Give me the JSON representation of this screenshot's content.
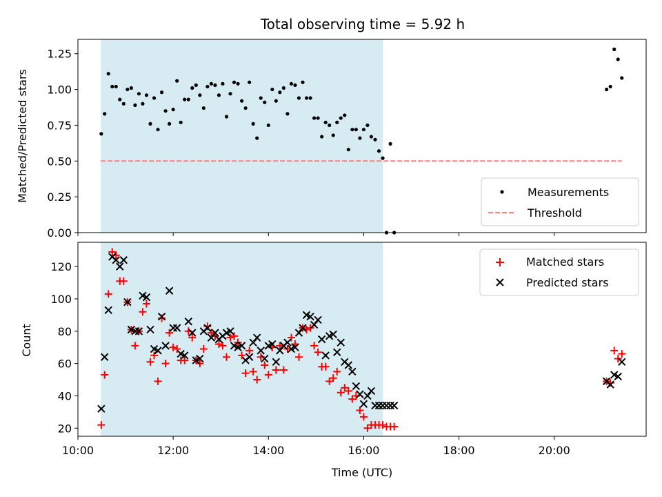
{
  "chart_data": [
    {
      "type": "scatter",
      "title": "Total observing time = 5.92 h",
      "ylabel": "Matched/Predicted stars",
      "xlabel": "",
      "ylim": [
        0,
        1.35
      ],
      "yticks": [
        0.0,
        0.25,
        0.5,
        0.75,
        1.0,
        1.25
      ],
      "ytick_labels": [
        "0.00",
        "0.25",
        "0.50",
        "0.75",
        "1.00",
        "1.25"
      ],
      "x_unit": "hours (UTC)",
      "xlim": [
        10.0,
        21.93
      ],
      "shaded_span": [
        10.48,
        16.4
      ],
      "grid": false,
      "legend_placement": "lower right",
      "series": [
        {
          "name": "Measurements",
          "marker": "dot",
          "color": "#000000",
          "x": [
            10.49,
            10.56,
            10.64,
            10.72,
            10.8,
            10.88,
            10.96,
            11.04,
            11.12,
            11.2,
            11.28,
            11.36,
            11.44,
            11.52,
            11.6,
            11.68,
            11.76,
            11.84,
            11.92,
            12.0,
            12.08,
            12.16,
            12.24,
            12.32,
            12.4,
            12.48,
            12.56,
            12.64,
            12.72,
            12.8,
            12.88,
            12.96,
            13.04,
            13.12,
            13.2,
            13.28,
            13.36,
            13.44,
            13.52,
            13.6,
            13.68,
            13.76,
            13.84,
            13.92,
            14.0,
            14.08,
            14.16,
            14.24,
            14.32,
            14.4,
            14.48,
            14.56,
            14.64,
            14.72,
            14.8,
            14.88,
            14.96,
            15.04,
            15.12,
            15.2,
            15.28,
            15.36,
            15.44,
            15.52,
            15.6,
            15.68,
            15.76,
            15.84,
            15.92,
            16.0,
            16.08,
            16.16,
            16.24,
            16.32,
            16.4,
            16.48,
            16.56,
            16.64,
            21.1,
            21.18,
            21.26,
            21.34,
            21.42
          ],
          "y": [
            0.69,
            0.83,
            1.11,
            1.02,
            1.02,
            0.93,
            0.9,
            1.0,
            1.01,
            0.89,
            0.97,
            0.9,
            0.96,
            0.76,
            0.94,
            0.72,
            0.98,
            0.85,
            0.76,
            0.86,
            1.06,
            0.77,
            0.93,
            0.93,
            1.01,
            1.03,
            0.96,
            0.87,
            1.02,
            1.04,
            1.03,
            0.96,
            1.04,
            0.81,
            0.97,
            1.05,
            1.04,
            0.92,
            0.87,
            1.05,
            0.76,
            0.66,
            0.94,
            0.91,
            0.75,
            1.0,
            0.92,
            0.98,
            1.01,
            0.83,
            1.04,
            1.03,
            0.94,
            1.05,
            0.94,
            0.94,
            0.8,
            0.8,
            0.67,
            0.77,
            0.75,
            0.68,
            0.77,
            0.8,
            0.82,
            0.58,
            0.72,
            0.72,
            0.66,
            0.72,
            0.75,
            0.67,
            0.65,
            0.57,
            0.52,
            0.0,
            0.62,
            0.0,
            1.0,
            1.02,
            1.28,
            1.21,
            1.08
          ]
        },
        {
          "name": "Threshold",
          "marker": "dashed-line",
          "color": "#ff7f7f",
          "x": [
            10.48,
            21.42
          ],
          "y": [
            0.5,
            0.5
          ]
        }
      ]
    },
    {
      "type": "scatter",
      "title": "",
      "xlabel": "Time (UTC)",
      "ylabel": "Count",
      "ylim": [
        15,
        135
      ],
      "yticks": [
        20,
        40,
        60,
        80,
        100,
        120
      ],
      "ytick_labels": [
        "20",
        "40",
        "60",
        "80",
        "100",
        "120"
      ],
      "xlim": [
        10.0,
        21.93
      ],
      "xticks": [
        10,
        12,
        14,
        16,
        18,
        20
      ],
      "xtick_labels": [
        "10:00",
        "12:00",
        "14:00",
        "16:00",
        "18:00",
        "20:00"
      ],
      "shaded_span": [
        10.48,
        16.4
      ],
      "grid": false,
      "legend_placement": "upper right",
      "series": [
        {
          "name": "Matched stars",
          "marker": "plus",
          "color": "#ff0000",
          "x": [
            10.49,
            10.56,
            10.64,
            10.72,
            10.8,
            10.88,
            10.96,
            11.04,
            11.12,
            11.2,
            11.28,
            11.36,
            11.44,
            11.52,
            11.6,
            11.68,
            11.76,
            11.84,
            11.92,
            12.0,
            12.08,
            12.16,
            12.24,
            12.32,
            12.4,
            12.48,
            12.56,
            12.64,
            12.72,
            12.8,
            12.88,
            12.96,
            13.04,
            13.12,
            13.2,
            13.28,
            13.36,
            13.44,
            13.52,
            13.6,
            13.68,
            13.76,
            13.84,
            13.92,
            14.0,
            14.08,
            14.16,
            14.24,
            14.32,
            14.4,
            14.48,
            14.56,
            14.64,
            14.72,
            14.8,
            14.88,
            14.96,
            15.04,
            15.12,
            15.2,
            15.28,
            15.36,
            15.44,
            15.52,
            15.6,
            15.68,
            15.76,
            15.84,
            15.92,
            16.0,
            16.08,
            16.16,
            16.24,
            16.32,
            16.4,
            16.48,
            16.56,
            16.64,
            21.1,
            21.18,
            21.26,
            21.34,
            21.42
          ],
          "y": [
            22,
            53,
            103,
            129,
            127,
            111,
            111,
            98,
            81,
            71,
            80,
            92,
            97,
            61,
            65,
            49,
            88,
            60,
            79,
            70,
            69,
            62,
            62,
            80,
            76,
            62,
            60,
            69,
            83,
            79,
            77,
            72,
            71,
            64,
            76,
            77,
            73,
            65,
            54,
            68,
            55,
            50,
            64,
            59,
            53,
            70,
            56,
            71,
            56,
            69,
            76,
            72,
            64,
            82,
            81,
            82,
            71,
            67,
            58,
            58,
            49,
            51,
            55,
            42,
            45,
            43,
            38,
            40,
            31,
            27,
            20,
            22,
            22,
            22,
            22,
            21,
            21,
            21,
            49,
            48,
            68,
            63,
            66
          ]
        },
        {
          "name": "Predicted stars",
          "marker": "x",
          "color": "#000000",
          "x": [
            10.49,
            10.56,
            10.64,
            10.72,
            10.8,
            10.88,
            10.96,
            11.04,
            11.12,
            11.2,
            11.28,
            11.36,
            11.44,
            11.52,
            11.6,
            11.68,
            11.76,
            11.84,
            11.92,
            12.0,
            12.08,
            12.16,
            12.24,
            12.32,
            12.4,
            12.48,
            12.56,
            12.64,
            12.72,
            12.8,
            12.88,
            12.96,
            13.04,
            13.12,
            13.2,
            13.28,
            13.36,
            13.44,
            13.52,
            13.6,
            13.68,
            13.76,
            13.84,
            13.92,
            14.0,
            14.08,
            14.16,
            14.24,
            14.32,
            14.4,
            14.48,
            14.56,
            14.64,
            14.72,
            14.8,
            14.88,
            14.96,
            15.04,
            15.12,
            15.2,
            15.28,
            15.36,
            15.44,
            15.52,
            15.6,
            15.68,
            15.76,
            15.84,
            15.92,
            16.0,
            16.08,
            16.16,
            16.24,
            16.32,
            16.4,
            16.48,
            16.56,
            16.64,
            21.1,
            21.18,
            21.26,
            21.34,
            21.42
          ],
          "y": [
            32,
            64,
            93,
            126,
            124,
            120,
            124,
            98,
            81,
            80,
            80,
            102,
            101,
            81,
            69,
            68,
            89,
            71,
            105,
            82,
            82,
            66,
            65,
            86,
            79,
            62,
            63,
            80,
            82,
            76,
            79,
            75,
            77,
            79,
            80,
            71,
            70,
            71,
            62,
            64,
            73,
            76,
            68,
            63,
            71,
            72,
            61,
            68,
            71,
            73,
            69,
            70,
            79,
            82,
            90,
            89,
            84,
            87,
            75,
            65,
            77,
            78,
            67,
            73,
            61,
            59,
            55,
            46,
            41,
            35,
            40,
            43,
            34,
            34,
            34,
            34,
            34,
            34,
            49,
            47,
            53,
            52,
            61
          ]
        }
      ]
    }
  ],
  "legend": {
    "top": [
      {
        "label": "Measurements",
        "symbol": "dot",
        "color": "#000000"
      },
      {
        "label": "Threshold",
        "symbol": "dashed",
        "color": "#ff7f7f"
      }
    ],
    "bottom": [
      {
        "label": "Matched stars",
        "symbol": "plus",
        "color": "#ff0000"
      },
      {
        "label": "Predicted stars",
        "symbol": "x",
        "color": "#000000"
      }
    ]
  },
  "colors": {
    "shade": "#add8e6",
    "shade_opacity": 0.5,
    "measurements": "#000000",
    "threshold": "#ff7f7f",
    "matched": "#ff0000",
    "predicted": "#000000"
  }
}
